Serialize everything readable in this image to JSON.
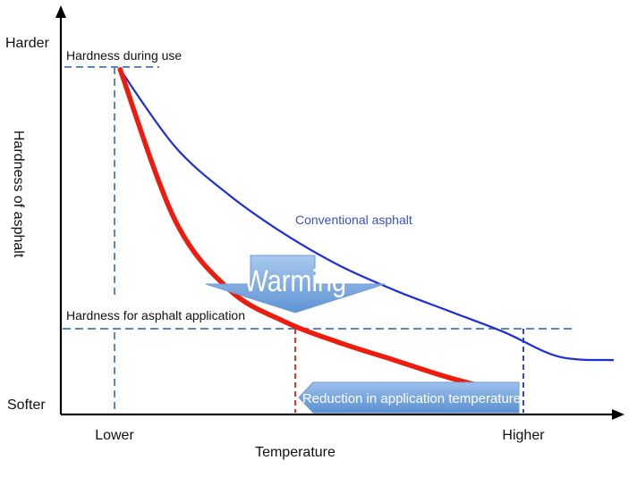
{
  "chart_data": {
    "type": "line",
    "xlabel": "Temperature",
    "ylabel": "Hardness of asphalt",
    "x_ticks": [
      "Lower",
      "Higher"
    ],
    "y_ticks": [
      "Harder",
      "Softer"
    ],
    "xlim": [
      0,
      1
    ],
    "ylim": [
      0,
      1
    ],
    "grid": false,
    "series": [
      {
        "name": "Conventional asphalt",
        "color": "#1f2fd6",
        "x": [
          0.1,
          0.2,
          0.3,
          0.4,
          0.5,
          0.6,
          0.7,
          0.8,
          0.9,
          1.0
        ],
        "y": [
          0.98,
          0.76,
          0.62,
          0.51,
          0.42,
          0.35,
          0.29,
          0.23,
          0.16,
          0.15
        ]
      },
      {
        "name": "",
        "color": "#ee1c0e",
        "x": [
          0.1,
          0.2,
          0.3,
          0.4,
          0.5,
          0.6,
          0.7,
          0.8
        ],
        "y": [
          0.98,
          0.55,
          0.35,
          0.26,
          0.2,
          0.15,
          0.1,
          0.06
        ]
      }
    ],
    "reference_lines": {
      "hardness_during_use": {
        "label": "Hardness during use",
        "y": 0.98
      },
      "hardness_for_application": {
        "label": "Hardness for asphalt application",
        "y": 0.245
      }
    },
    "annotations": {
      "warming": "Warming",
      "reduction": "Reduction in application temperature"
    },
    "colors": {
      "axis": "#000000",
      "conventional": "#1f2fd6",
      "warm_mix": "#ee1c0e",
      "guide": "#5b86c2",
      "arrow_fill": "#7aa9dd",
      "arrow_text": "#ffffff"
    }
  }
}
